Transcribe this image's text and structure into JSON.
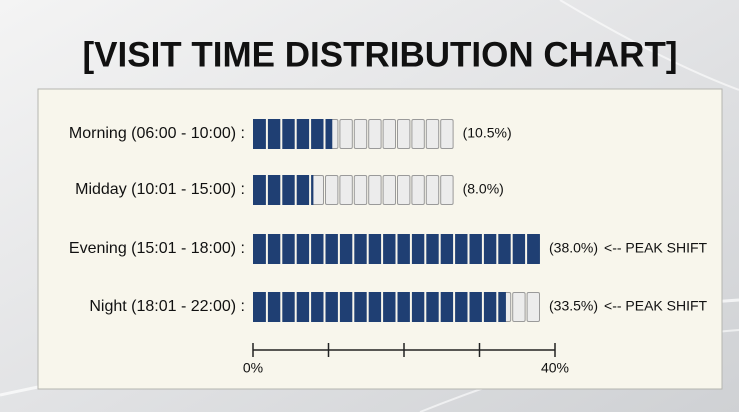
{
  "chart_data": {
    "type": "block-bar",
    "title": "[VISIT TIME DISTRIBUTION CHART]",
    "categories": [
      "Morning (06:00 - 10:00) :",
      "Midday (10:01 - 15:00) :",
      "Evening (15:01 - 18:00) :",
      "Night (18:01 - 22:00) :"
    ],
    "values": [
      10.5,
      8.0,
      38.0,
      33.5
    ],
    "value_labels": [
      "(10.5%)",
      "(8.0%)",
      "(38.0%)",
      "(33.5%)"
    ],
    "annotations": [
      null,
      null,
      "<-- PEAK SHIFT",
      "<-- PEAK SHIFT"
    ],
    "color": "#1f3f73",
    "xlim": [
      0,
      40
    ],
    "xticks": [
      {
        "value": 0,
        "label": "0%"
      },
      {
        "value": 10
      },
      {
        "value": 20
      },
      {
        "value": 30
      },
      {
        "value": 40,
        "label": "40%"
      }
    ]
  }
}
